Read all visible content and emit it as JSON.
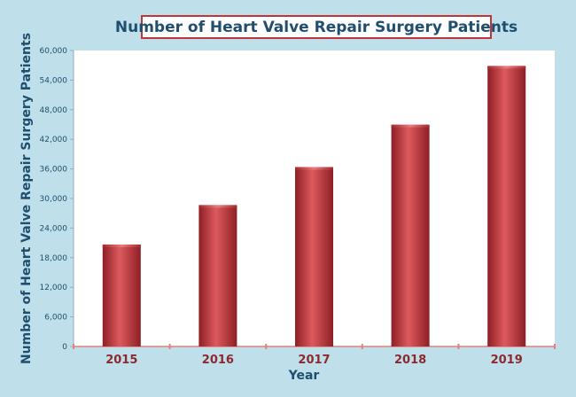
{
  "chart_data": {
    "type": "bar",
    "title": "Number of Heart Valve Repair Surgery Patients",
    "xlabel": "Year",
    "ylabel": "Number of Heart Valve Repair Surgery Patients",
    "categories": [
      "2015",
      "2016",
      "2017",
      "2018",
      "2019"
    ],
    "values": [
      20500,
      28500,
      36200,
      44800,
      56700
    ],
    "ylim": [
      0,
      60000
    ],
    "yticks": [
      "0",
      "6,000",
      "12,000",
      "18,000",
      "24,000",
      "30,000",
      "36,000",
      "42,000",
      "48,000",
      "54,000",
      "60,000"
    ],
    "grid": false,
    "legend": "none"
  },
  "colors": {
    "background": "#bfe0ea",
    "plot_area": "#ffffff",
    "bar": "#c0343a",
    "text": "#1f4e6e",
    "category_text": "#8b2a2e"
  }
}
